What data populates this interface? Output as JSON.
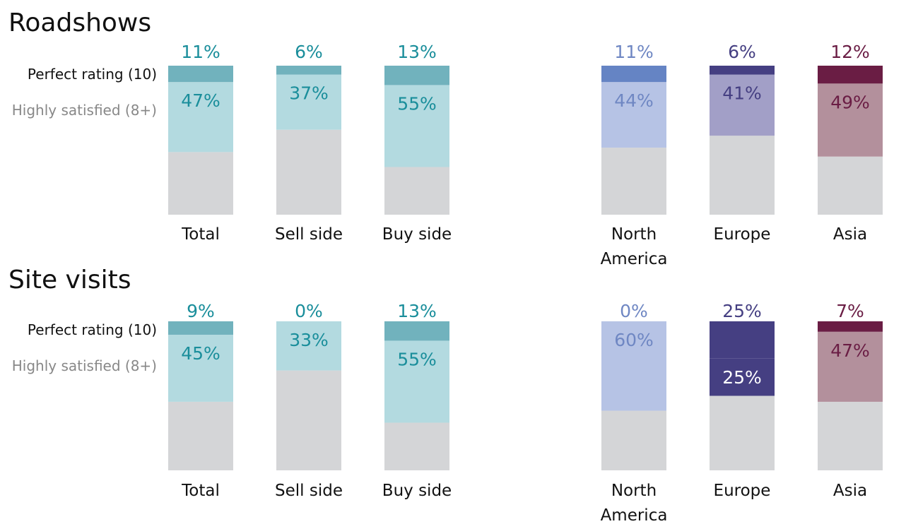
{
  "chart_data": [
    {
      "type": "bar",
      "title": "Roadshows",
      "legend": {
        "perfect": "Perfect rating (10)",
        "satisfied": "Highly satisfied (8+)"
      },
      "categories": [
        {
          "label": "Total",
          "lines": [
            "Total"
          ],
          "perfect": 11,
          "satisfied": 47,
          "palette": "teal"
        },
        {
          "label": "Sell side",
          "lines": [
            "Sell side"
          ],
          "perfect": 6,
          "satisfied": 37,
          "palette": "teal"
        },
        {
          "label": "Buy side",
          "lines": [
            "Buy side"
          ],
          "perfect": 13,
          "satisfied": 55,
          "palette": "teal"
        },
        {
          "label": "North America",
          "lines": [
            "North",
            "America"
          ],
          "perfect": 11,
          "satisfied": 44,
          "palette": "blue"
        },
        {
          "label": "Europe",
          "lines": [
            "Europe"
          ],
          "perfect": 6,
          "satisfied": 41,
          "palette": "indigo"
        },
        {
          "label": "Asia",
          "lines": [
            "Asia"
          ],
          "perfect": 12,
          "satisfied": 49,
          "palette": "plum"
        }
      ],
      "ylim": [
        0,
        100
      ]
    },
    {
      "type": "bar",
      "title": "Site visits",
      "legend": {
        "perfect": "Perfect rating (10)",
        "satisfied": "Highly satisfied (8+)"
      },
      "categories": [
        {
          "label": "Total",
          "lines": [
            "Total"
          ],
          "perfect": 9,
          "satisfied": 45,
          "palette": "teal"
        },
        {
          "label": "Sell side",
          "lines": [
            "Sell side"
          ],
          "perfect": 0,
          "satisfied": 33,
          "palette": "teal"
        },
        {
          "label": "Buy side",
          "lines": [
            "Buy side"
          ],
          "perfect": 13,
          "satisfied": 55,
          "palette": "teal"
        },
        {
          "label": "North America",
          "lines": [
            "North",
            "America"
          ],
          "perfect": 0,
          "satisfied": 60,
          "palette": "blue"
        },
        {
          "label": "Europe",
          "lines": [
            "Europe"
          ],
          "perfect": 25,
          "satisfied": 25,
          "palette": "indigo",
          "satisfied_label_color": "#ffffff",
          "satisfied_fill": "#453f82"
        },
        {
          "label": "Asia",
          "lines": [
            "Asia"
          ],
          "perfect": 7,
          "satisfied": 47,
          "palette": "plum"
        }
      ],
      "ylim": [
        0,
        100
      ]
    }
  ],
  "palettes": {
    "teal": {
      "perfect": "#71b2bd",
      "satisfied": "#b3dae0",
      "label": "#1a8e9b"
    },
    "blue": {
      "perfect": "#6584c4",
      "satisfied": "#b6c3e5",
      "label": "#6f87c3"
    },
    "indigo": {
      "perfect": "#453f82",
      "satisfied": "#a29fc7",
      "label": "#453f82"
    },
    "plum": {
      "perfect": "#6a1d44",
      "satisfied": "#b3909c",
      "label": "#6a1d44"
    }
  },
  "colors": {
    "remainder": "#d4d5d7",
    "text": "#111111",
    "legend_secondary": "#888888"
  }
}
